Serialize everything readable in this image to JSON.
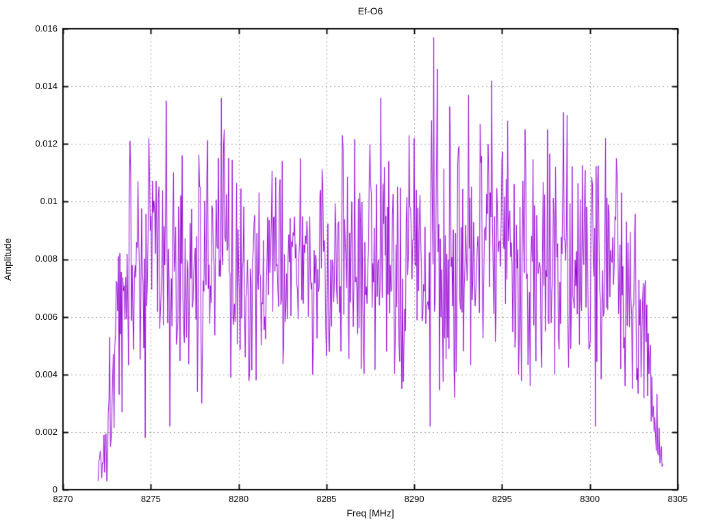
{
  "figure": {
    "background": "#ffffff"
  },
  "chart_data": {
    "type": "line",
    "title": "Ef-O6",
    "xlabel": "Freq [MHz]",
    "ylabel": "Amplitude",
    "xlim": [
      8270,
      8305
    ],
    "ylim": [
      0,
      0.016
    ],
    "xticks": [
      8270,
      8275,
      8280,
      8285,
      8290,
      8295,
      8300,
      8305
    ],
    "yticks": [
      0,
      0.002,
      0.004,
      0.006,
      0.008,
      0.01,
      0.012,
      0.014,
      0.016
    ],
    "xtick_labels": [
      "8270",
      "8275",
      "8280",
      "8285",
      "8290",
      "8295",
      "8300",
      "8305"
    ],
    "ytick_labels": [
      "0",
      "0.002",
      "0.004",
      "0.006",
      "0.008",
      "0.01",
      "0.012",
      "0.014",
      "0.016"
    ],
    "grid": true,
    "legend": "none",
    "line_color": "#9400d3",
    "grid_color": "#9b9b9b",
    "border_color": "#000000",
    "series": {
      "name": "Ef-O6",
      "x_start": 8272.0,
      "x_end": 8304.15,
      "n_points": 780,
      "noise_seed": 1337,
      "envelope": [
        [
          8272.0,
          0.0008,
          0.0007
        ],
        [
          8272.3,
          0.0015,
          0.0012
        ],
        [
          8272.7,
          0.0035,
          0.0018
        ],
        [
          8273.2,
          0.006,
          0.0028
        ],
        [
          8274.0,
          0.008,
          0.0034
        ],
        [
          8275.5,
          0.0082,
          0.0034
        ],
        [
          8277.5,
          0.0078,
          0.0032
        ],
        [
          8279.0,
          0.0085,
          0.0034
        ],
        [
          8280.5,
          0.0072,
          0.0026
        ],
        [
          8282.0,
          0.0076,
          0.003
        ],
        [
          8284.0,
          0.0077,
          0.003
        ],
        [
          8286.0,
          0.0081,
          0.0031
        ],
        [
          8288.0,
          0.0082,
          0.0032
        ],
        [
          8290.0,
          0.0082,
          0.0034
        ],
        [
          8291.2,
          0.009,
          0.004
        ],
        [
          8292.5,
          0.0083,
          0.0036
        ],
        [
          8294.5,
          0.0087,
          0.0035
        ],
        [
          8296.5,
          0.0081,
          0.0033
        ],
        [
          8298.5,
          0.0085,
          0.0034
        ],
        [
          8300.0,
          0.008,
          0.0033
        ],
        [
          8301.5,
          0.0076,
          0.003
        ],
        [
          8302.5,
          0.0066,
          0.0026
        ],
        [
          8303.3,
          0.0048,
          0.002
        ],
        [
          8303.8,
          0.0022,
          0.001
        ],
        [
          8304.15,
          0.001,
          0.0004
        ]
      ],
      "peaks": [
        [
          8273.8,
          0.0121
        ],
        [
          8274.9,
          0.0122
        ],
        [
          8275.9,
          0.0135
        ],
        [
          8276.8,
          0.0116
        ],
        [
          8279.0,
          0.0136
        ],
        [
          8279.2,
          0.0125
        ],
        [
          8282.5,
          0.0114
        ],
        [
          8283.5,
          0.0115
        ],
        [
          8285.9,
          0.0123
        ],
        [
          8288.1,
          0.0136
        ],
        [
          8289.7,
          0.0123
        ],
        [
          8290.0,
          0.0122
        ],
        [
          8291.1,
          0.0157
        ],
        [
          8291.3,
          0.0146
        ],
        [
          8292.0,
          0.0133
        ],
        [
          8293.1,
          0.0137
        ],
        [
          8294.4,
          0.0142
        ],
        [
          8295.3,
          0.0128
        ],
        [
          8296.3,
          0.0125
        ],
        [
          8297.6,
          0.0125
        ],
        [
          8298.5,
          0.0131
        ],
        [
          8298.7,
          0.013
        ],
        [
          8300.9,
          0.0122
        ],
        [
          8301.5,
          0.0115
        ]
      ],
      "minima": [
        [
          8272.2,
          0.0004
        ],
        [
          8272.5,
          0.0003
        ],
        [
          8274.7,
          0.0018
        ],
        [
          8276.1,
          0.0022
        ],
        [
          8277.9,
          0.003
        ],
        [
          8281.0,
          0.0038
        ],
        [
          8284.2,
          0.004
        ],
        [
          8287.0,
          0.0042
        ],
        [
          8289.3,
          0.0035
        ],
        [
          8290.9,
          0.0022
        ],
        [
          8292.3,
          0.0032
        ],
        [
          8296.6,
          0.0036
        ],
        [
          8298.0,
          0.004
        ],
        [
          8300.3,
          0.0022
        ],
        [
          8302.4,
          0.0035
        ],
        [
          8303.9,
          0.0012
        ],
        [
          8304.1,
          0.0008
        ]
      ]
    }
  }
}
